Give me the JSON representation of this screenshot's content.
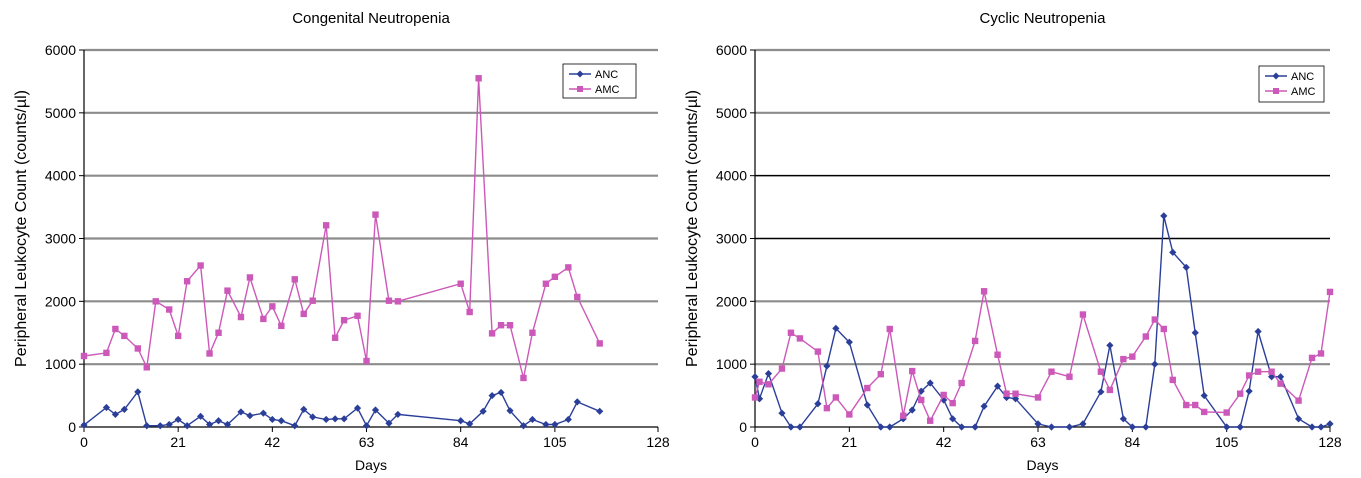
{
  "chart_data": [
    {
      "type": "line",
      "title": "Congenital Neutropenia",
      "xlabel": "Days",
      "ylabel": "Peripheral Leukocyte Count (counts/µl)",
      "xlim": [
        0,
        128
      ],
      "ylim": [
        0,
        6000
      ],
      "xticks": [
        "0",
        "21",
        "42",
        "63",
        "84",
        "105",
        "128"
      ],
      "yticks": [
        "0",
        "1000",
        "2000",
        "3000",
        "4000",
        "5000",
        "6000"
      ],
      "grid": true,
      "legend": "top-right",
      "series": [
        {
          "name": "ANC",
          "color": "#2b3f99",
          "marker": "diamond",
          "x": [
            0,
            5,
            7,
            9,
            12,
            14,
            17,
            19,
            21,
            23,
            26,
            28,
            30,
            32,
            35,
            37,
            40,
            42,
            44,
            47,
            49,
            51,
            54,
            56,
            58,
            61,
            63,
            65,
            68,
            70,
            84,
            86,
            89,
            91,
            93,
            95,
            98,
            100,
            103,
            105,
            108,
            110,
            115
          ],
          "y": [
            30,
            310,
            200,
            280,
            560,
            20,
            20,
            40,
            120,
            20,
            170,
            40,
            100,
            40,
            240,
            180,
            220,
            120,
            100,
            20,
            280,
            160,
            120,
            130,
            130,
            300,
            20,
            270,
            60,
            200,
            100,
            50,
            250,
            500,
            550,
            260,
            20,
            120,
            40,
            40,
            120,
            400,
            250
          ]
        },
        {
          "name": "AMC",
          "color": "#cc59b9",
          "marker": "square",
          "x": [
            0,
            5,
            7,
            9,
            12,
            14,
            16,
            19,
            21,
            23,
            26,
            28,
            30,
            32,
            35,
            37,
            40,
            42,
            44,
            47,
            49,
            51,
            54,
            56,
            58,
            61,
            63,
            65,
            68,
            70,
            84,
            86,
            88,
            91,
            93,
            95,
            98,
            100,
            103,
            105,
            108,
            110,
            115
          ],
          "y": [
            1130,
            1180,
            1560,
            1450,
            1250,
            950,
            2000,
            1870,
            1450,
            2320,
            2570,
            1170,
            1500,
            2170,
            1750,
            2380,
            1720,
            1920,
            1610,
            2350,
            1800,
            2010,
            3210,
            1420,
            1700,
            1770,
            1050,
            3380,
            2010,
            2000,
            2280,
            1830,
            5550,
            1490,
            1620,
            1620,
            780,
            1500,
            2280,
            2390,
            2540,
            2070,
            1330
          ]
        }
      ]
    },
    {
      "type": "line",
      "title": "Cyclic Neutropenia",
      "xlabel": "Days",
      "ylabel": "Peripheral Leukocyte Count (counts/µl)",
      "xlim": [
        0,
        128
      ],
      "ylim": [
        0,
        6000
      ],
      "xticks": [
        "0",
        "21",
        "42",
        "63",
        "84",
        "105",
        "128"
      ],
      "yticks": [
        "0",
        "1000",
        "2000",
        "3000",
        "4000",
        "5000",
        "6000"
      ],
      "grid": true,
      "legend": "top-right",
      "series": [
        {
          "name": "ANC",
          "color": "#2b3f99",
          "marker": "diamond",
          "x": [
            0,
            1,
            3,
            6,
            8,
            10,
            14,
            16,
            18,
            21,
            25,
            28,
            30,
            33,
            35,
            37,
            39,
            42,
            44,
            46,
            49,
            51,
            54,
            56,
            58,
            63,
            66,
            70,
            73,
            77,
            79,
            82,
            84,
            87,
            89,
            91,
            93,
            96,
            98,
            100,
            105,
            108,
            110,
            112,
            115,
            117,
            121,
            124,
            126,
            128
          ],
          "y": [
            800,
            450,
            850,
            220,
            0,
            0,
            370,
            970,
            1570,
            1350,
            350,
            0,
            0,
            130,
            270,
            570,
            700,
            430,
            130,
            0,
            0,
            330,
            650,
            470,
            450,
            50,
            0,
            0,
            50,
            560,
            1300,
            130,
            0,
            0,
            1000,
            3360,
            2780,
            2540,
            1500,
            500,
            0,
            0,
            570,
            1520,
            800,
            800,
            130,
            0,
            0,
            50
          ]
        },
        {
          "name": "AMC",
          "color": "#cc59b9",
          "marker": "square",
          "x": [
            0,
            1,
            3,
            6,
            8,
            10,
            14,
            16,
            18,
            21,
            25,
            28,
            30,
            33,
            35,
            37,
            39,
            42,
            44,
            46,
            49,
            51,
            54,
            56,
            58,
            63,
            66,
            70,
            73,
            77,
            79,
            82,
            84,
            87,
            89,
            91,
            93,
            96,
            98,
            100,
            105,
            108,
            110,
            112,
            115,
            117,
            121,
            124,
            126,
            128
          ],
          "y": [
            470,
            720,
            680,
            930,
            1500,
            1410,
            1200,
            300,
            470,
            200,
            620,
            840,
            1560,
            180,
            890,
            430,
            100,
            510,
            380,
            700,
            1370,
            2160,
            1150,
            530,
            530,
            470,
            880,
            800,
            1790,
            880,
            590,
            1080,
            1120,
            1440,
            1710,
            1560,
            750,
            350,
            350,
            240,
            230,
            530,
            820,
            880,
            880,
            690,
            420,
            1100,
            1170,
            2150
          ]
        }
      ]
    }
  ]
}
